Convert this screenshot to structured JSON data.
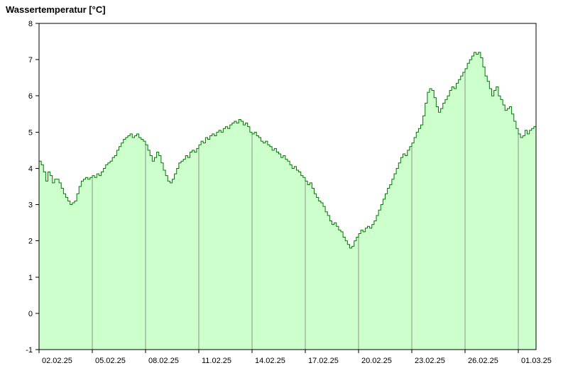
{
  "page": {
    "title": "Wassertemperatur [°C]"
  },
  "chart_data": {
    "type": "area",
    "title": "Wassertemperatur [°C]",
    "series_name": "Wassertemperatur",
    "unit": "°C",
    "step": true,
    "grid": "vertical-only, visible inside filled area",
    "legend": "none",
    "x_domain_days": [
      0,
      28
    ],
    "points_per_day": 8,
    "x_ticks": [
      {
        "day": 0,
        "label": "02.02.25"
      },
      {
        "day": 3,
        "label": "05.02.25"
      },
      {
        "day": 6,
        "label": "08.02.25"
      },
      {
        "day": 9,
        "label": "11.02.25"
      },
      {
        "day": 12,
        "label": "14.02.25"
      },
      {
        "day": 15,
        "label": "17.02.25"
      },
      {
        "day": 18,
        "label": "20.02.25"
      },
      {
        "day": 21,
        "label": "23.02.25"
      },
      {
        "day": 24,
        "label": "26.02.25"
      },
      {
        "day": 27,
        "label": "01.03.25"
      }
    ],
    "ylim": [
      -1,
      8
    ],
    "y_ticks": [
      -1,
      0,
      1,
      2,
      3,
      4,
      5,
      6,
      7,
      8
    ],
    "colors": {
      "fill": "#ccffcc",
      "line": "#007700",
      "grid": "#909090",
      "axis": "#000000",
      "background": "#ffffff"
    },
    "values": [
      4.2,
      4.1,
      3.9,
      3.65,
      3.9,
      3.8,
      3.6,
      3.7,
      3.7,
      3.6,
      3.45,
      3.3,
      3.2,
      3.1,
      3.0,
      3.05,
      3.1,
      3.3,
      3.5,
      3.65,
      3.7,
      3.75,
      3.7,
      3.75,
      3.8,
      3.75,
      3.85,
      3.8,
      3.9,
      4.0,
      4.1,
      4.15,
      4.2,
      4.3,
      4.35,
      4.5,
      4.6,
      4.7,
      4.8,
      4.85,
      4.9,
      4.95,
      4.85,
      4.9,
      4.95,
      4.85,
      4.8,
      4.75,
      4.65,
      4.5,
      4.35,
      4.2,
      4.3,
      4.45,
      4.35,
      4.15,
      3.95,
      3.8,
      3.65,
      3.6,
      3.7,
      3.85,
      4.0,
      4.15,
      4.2,
      4.25,
      4.35,
      4.3,
      4.45,
      4.5,
      4.45,
      4.55,
      4.65,
      4.75,
      4.7,
      4.85,
      4.8,
      4.9,
      4.95,
      4.9,
      5.0,
      5.05,
      5.0,
      5.1,
      5.15,
      5.1,
      5.2,
      5.25,
      5.3,
      5.25,
      5.35,
      5.3,
      5.2,
      5.25,
      5.15,
      5.0,
      4.95,
      5.0,
      4.9,
      4.85,
      4.75,
      4.7,
      4.75,
      4.65,
      4.6,
      4.5,
      4.55,
      4.45,
      4.4,
      4.3,
      4.35,
      4.25,
      4.2,
      4.1,
      4.0,
      4.05,
      3.95,
      3.9,
      3.8,
      3.75,
      3.65,
      3.55,
      3.6,
      3.45,
      3.3,
      3.2,
      3.1,
      3.05,
      2.95,
      2.8,
      2.7,
      2.55,
      2.45,
      2.5,
      2.4,
      2.3,
      2.25,
      2.1,
      2.0,
      1.9,
      1.8,
      1.85,
      2.0,
      2.1,
      2.2,
      2.3,
      2.25,
      2.35,
      2.4,
      2.35,
      2.45,
      2.55,
      2.7,
      2.85,
      3.0,
      3.15,
      3.3,
      3.45,
      3.55,
      3.7,
      3.85,
      4.0,
      4.15,
      4.3,
      4.4,
      4.35,
      4.5,
      4.6,
      4.7,
      4.85,
      5.0,
      5.1,
      5.2,
      5.45,
      5.8,
      6.1,
      6.2,
      6.15,
      5.95,
      5.7,
      5.55,
      5.65,
      5.8,
      5.9,
      6.0,
      6.15,
      6.25,
      6.2,
      6.35,
      6.45,
      6.55,
      6.65,
      6.75,
      6.9,
      7.0,
      7.1,
      7.2,
      7.15,
      7.2,
      7.05,
      6.8,
      6.55,
      6.4,
      6.2,
      6.0,
      6.15,
      6.25,
      6.0,
      5.9,
      5.75,
      5.6,
      5.65,
      5.7,
      5.5,
      5.3,
      5.1,
      4.95,
      4.85,
      4.9,
      5.05,
      4.95,
      5.05,
      5.1,
      5.15,
      5.2
    ]
  }
}
